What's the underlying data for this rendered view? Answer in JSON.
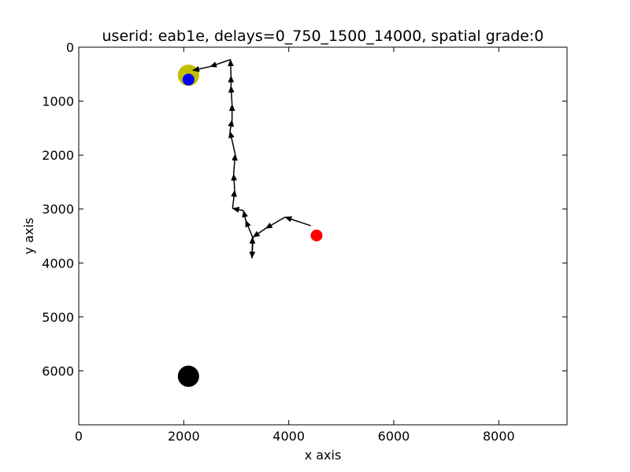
{
  "chart_data": {
    "type": "scatter",
    "title": "userid: eab1e, delays=0_750_1500_14000, spatial grade:0",
    "xlabel": "x axis",
    "ylabel": "y axis",
    "xlim": [
      0,
      9300
    ],
    "ylim": [
      0,
      7000
    ],
    "y_inverted": true,
    "xticks": [
      0,
      2000,
      4000,
      6000,
      8000
    ],
    "yticks": [
      0,
      1000,
      2000,
      3000,
      4000,
      5000,
      6000
    ],
    "grid": false,
    "legend": "none",
    "path": {
      "name": "",
      "color": "#000000",
      "points": [
        [
          4420,
          3310
        ],
        [
          3930,
          3150
        ],
        [
          3560,
          3360
        ],
        [
          3320,
          3520
        ],
        [
          3300,
          3910
        ],
        [
          3310,
          3520
        ],
        [
          3180,
          3210
        ],
        [
          3140,
          3030
        ],
        [
          2930,
          2990
        ],
        [
          2970,
          2650
        ],
        [
          2950,
          2350
        ],
        [
          2980,
          1980
        ],
        [
          2880,
          1560
        ],
        [
          2920,
          1350
        ],
        [
          2920,
          1060
        ],
        [
          2900,
          720
        ],
        [
          2900,
          530
        ],
        [
          2890,
          230
        ],
        [
          2500,
          360
        ],
        [
          2170,
          430
        ]
      ]
    },
    "markers": [
      {
        "name": "",
        "x": 2090,
        "y": 520,
        "size": "large",
        "color": "#bfbf00"
      },
      {
        "name": "",
        "x": 2090,
        "y": 600,
        "size": "small",
        "color": "#0000ff"
      },
      {
        "name": "",
        "x": 4530,
        "y": 3490,
        "size": "small",
        "color": "#ff0000"
      },
      {
        "name": "",
        "x": 2090,
        "y": 6100,
        "size": "large",
        "color": "#000000"
      }
    ]
  }
}
